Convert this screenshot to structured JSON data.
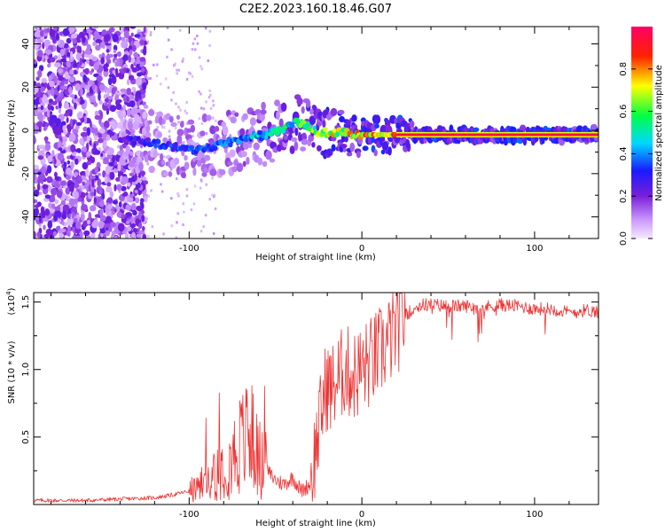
{
  "title": "C2E2.2023.160.18.46.G07",
  "chart_data": [
    {
      "type": "heatmap",
      "xlabel": "Height of straight line (km)",
      "ylabel": "Frequency (Hz)",
      "xlim": [
        -190,
        137
      ],
      "ylim": [
        -50,
        48
      ],
      "x_ticks": [
        -100,
        0,
        100
      ],
      "y_ticks": [
        -40,
        -20,
        0,
        20,
        40
      ],
      "colorbar": {
        "label": "Normalized spectral amplitude",
        "range": [
          0,
          1
        ],
        "ticks": [
          "0.0",
          "0.2",
          "0.4",
          "0.6",
          "0.8"
        ],
        "colors": [
          "#f0d8ff",
          "#7a1fd9",
          "#1a1aff",
          "#00d8ff",
          "#00ff44",
          "#ffff00",
          "#ff1a00",
          "#ff0066"
        ]
      },
      "ridge": {
        "x": [
          -140,
          -125,
          -115,
          -105,
          -95,
          -85,
          -75,
          -65,
          -55,
          -45,
          -38,
          -32,
          -25,
          -18,
          -10,
          0,
          10,
          20,
          30,
          50,
          80,
          100,
          137
        ],
        "frequency_hz": [
          -4,
          -5,
          -7,
          -8,
          -9,
          -7,
          -5,
          -3,
          -2,
          1,
          4,
          2,
          -1,
          -1,
          -1,
          -2,
          -2,
          -2,
          -2,
          -2,
          -2,
          -2,
          -2
        ],
        "amplitude": [
          0.3,
          0.35,
          0.38,
          0.4,
          0.42,
          0.45,
          0.45,
          0.5,
          0.55,
          0.6,
          0.65,
          0.7,
          0.75,
          0.85,
          0.85,
          0.9,
          0.9,
          0.92,
          0.95,
          0.95,
          0.95,
          0.95,
          0.95
        ]
      },
      "noise_region_x": [
        -190,
        -125
      ]
    },
    {
      "type": "line",
      "xlabel": "Height of straight line (km)",
      "ylabel": "SNR (10 * v/v)",
      "multiplier_label": "(x10",
      "multiplier_exp": "4",
      "multiplier_close": ")",
      "xlim": [
        -190,
        137
      ],
      "ylim": [
        0,
        1.57
      ],
      "x_ticks": [
        -100,
        0,
        100
      ],
      "y_ticks": [
        "0.5",
        "1.0",
        "1.5"
      ],
      "line_color": "#ee3333",
      "series": [
        {
          "x": [
            -190,
            -160,
            -140,
            -120,
            -110,
            -100,
            -95,
            -90,
            -85,
            -80,
            -75,
            -70,
            -65,
            -60,
            -55,
            -50,
            -45,
            -40,
            -35,
            -30,
            -25,
            -22,
            -20,
            -18,
            -15,
            -10,
            -5,
            0,
            5,
            10,
            15,
            20,
            25,
            30,
            35,
            40,
            50,
            60,
            70,
            80,
            90,
            100,
            110,
            120,
            130,
            137
          ],
          "values": [
            0.03,
            0.03,
            0.04,
            0.05,
            0.07,
            0.1,
            0.12,
            0.16,
            0.25,
            0.3,
            0.35,
            0.45,
            0.5,
            0.35,
            0.25,
            0.18,
            0.15,
            0.2,
            0.1,
            0.15,
            0.55,
            0.8,
            0.9,
            0.85,
            0.9,
            1.0,
            0.95,
            1.0,
            1.05,
            1.12,
            1.2,
            1.3,
            1.4,
            1.45,
            1.48,
            1.48,
            1.47,
            1.47,
            1.46,
            1.48,
            1.47,
            1.45,
            1.45,
            1.42,
            1.44,
            1.43
          ]
        }
      ]
    }
  ]
}
